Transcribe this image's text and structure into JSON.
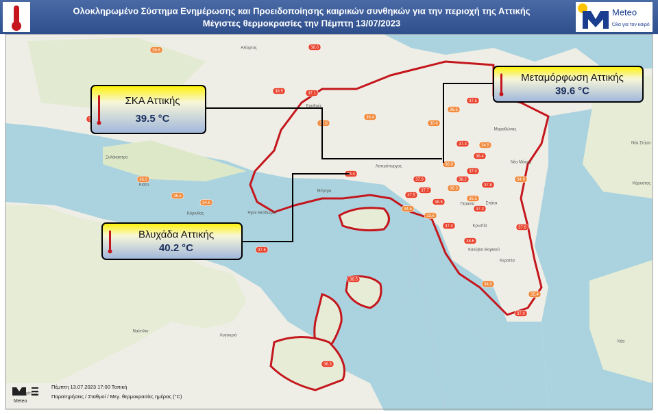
{
  "header": {
    "title": "Ολοκληρωμένο Σύστημα Ενημέρωσης και Προειδοποίησης καιρικών συνθηκών για την περιοχή της Αττικής",
    "subtitle": "Μέγιστες θερμοκρασίες την Πέμπτη  13/07/2023"
  },
  "logo": {
    "name": "Meteo",
    "tagline": "Όλα για τον καιρό"
  },
  "callouts": [
    {
      "name": "ΣΚΑ Αττικής",
      "temperature": "39.5",
      "unit": "°C"
    },
    {
      "name": "Μεταμόρφωση Αττικής",
      "temperature": "39.6",
      "unit": "°C"
    },
    {
      "name": "Βλυχάδα Αττικής",
      "temperature": "40.2",
      "unit": "°C"
    }
  ],
  "stations": [
    "36.6",
    "38.0",
    "38.5",
    "37.1",
    "37.5",
    "36.5",
    "36.4",
    "30.6",
    "35.6",
    "38.0",
    "34.5",
    "37.3",
    "38.4",
    "36.9",
    "37.0",
    "38.2",
    "37.8",
    "34.9",
    "36.0",
    "36.5",
    "34.6",
    "37.5",
    "38.4",
    "37.9",
    "33.6",
    "34.6",
    "37.5",
    "38.5",
    "36.3",
    "36.5",
    "37.4",
    "37.3",
    "38.6",
    "37.6",
    "34.0",
    "35.4",
    "37.0",
    "38.5",
    "38.3",
    "37.7"
  ],
  "places": [
    "Αλίαρτος",
    "Ερυθρές",
    "Ξυλόκαστρο",
    "Κιάτο",
    "Κόρινθος",
    "Άγιοι Θεόδωροι",
    "Μέγαρα",
    "Ασπρόπυργος",
    "Μαραθώνας",
    "Νέα Μάκρη",
    "Παιανία",
    "Σπάτα",
    "Κρωπία",
    "Καλύβια Θορικού",
    "Κερατέα",
    "Ναύπλιο",
    "Λυγουριό",
    "Νέα Στύρα",
    "Κάρυστος",
    "Κέα",
    "Τρίπολη"
  ],
  "footer": {
    "line1": "Πέμπτη 13.07.2023 17:00 Τοπική",
    "line2": "Παρατηρήσεις / Σταθμοί / Μεγ. θερμοκρασίες ημέρας (°C)",
    "logo": "Meteo"
  }
}
